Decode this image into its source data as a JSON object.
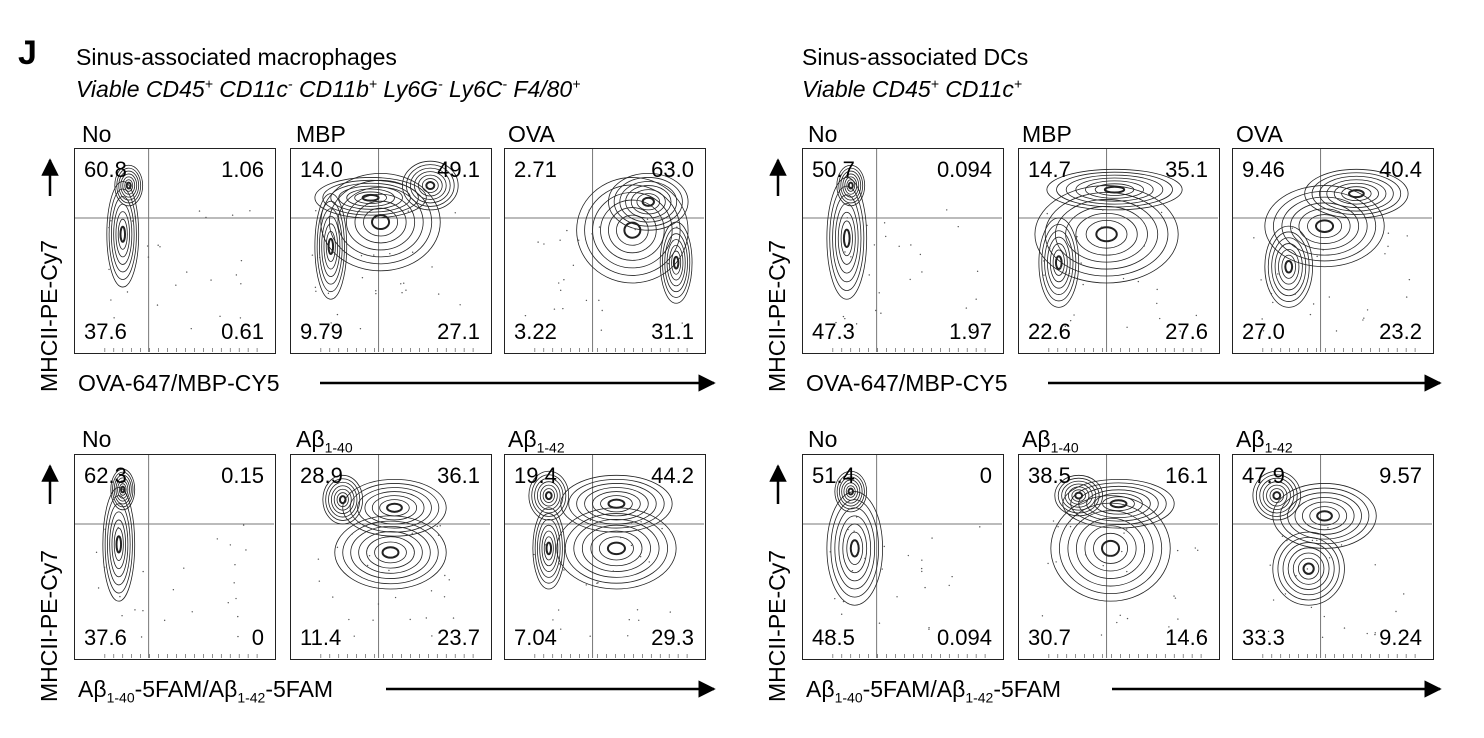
{
  "panel_letter": "J",
  "groups": [
    {
      "title": "Sinus-associated macrophages",
      "subtitle_parts": [
        {
          "t": "Viable CD45",
          "s": "+"
        },
        {
          "t": " CD11c",
          "s": "-"
        },
        {
          "t": " CD11b",
          "s": "+"
        },
        {
          "t": " Ly6G",
          "s": "-"
        },
        {
          "t": " Ly6C",
          "s": "-"
        },
        {
          "t": " F4/80",
          "s": "+"
        }
      ]
    },
    {
      "title": "Sinus-associated DCs",
      "subtitle_parts": [
        {
          "t": "Viable CD45",
          "s": "+"
        },
        {
          "t": " CD11c",
          "s": "+"
        }
      ]
    }
  ],
  "y_axis_label": "MHCII-PE-Cy7",
  "x_axis_labels": {
    "top": "OVA-647/MBP-CY5",
    "bottom": {
      "p1": "Aβ",
      "s1": "1-40",
      "p2": "-5FAM/Aβ",
      "s2": "1-42",
      "p3": "-5FAM"
    }
  },
  "samples": {
    "no": "No",
    "mbp": "MBP",
    "ova": "OVA",
    "ab40": {
      "main": "Aβ",
      "sub": "1-40"
    },
    "ab42": {
      "main": "Aβ",
      "sub": "1-42"
    }
  },
  "chart_data": [
    {
      "type": "table",
      "group": "Sinus-associated macrophages",
      "row": "top",
      "sample": "No",
      "quadrants": {
        "upper_left": "60.8",
        "upper_right": "1.06",
        "lower_left": "37.6",
        "lower_right": "0.61"
      }
    },
    {
      "type": "table",
      "group": "Sinus-associated macrophages",
      "row": "top",
      "sample": "MBP",
      "quadrants": {
        "upper_left": "14.0",
        "upper_right": "49.1",
        "lower_left": "9.79",
        "lower_right": "27.1"
      }
    },
    {
      "type": "table",
      "group": "Sinus-associated macrophages",
      "row": "top",
      "sample": "OVA",
      "quadrants": {
        "upper_left": "2.71",
        "upper_right": "63.0",
        "lower_left": "3.22",
        "lower_right": "31.1"
      }
    },
    {
      "type": "table",
      "group": "Sinus-associated DCs",
      "row": "top",
      "sample": "No",
      "quadrants": {
        "upper_left": "50.7",
        "upper_right": "0.094",
        "lower_left": "47.3",
        "lower_right": "1.97"
      }
    },
    {
      "type": "table",
      "group": "Sinus-associated DCs",
      "row": "top",
      "sample": "MBP",
      "quadrants": {
        "upper_left": "14.7",
        "upper_right": "35.1",
        "lower_left": "22.6",
        "lower_right": "27.6"
      }
    },
    {
      "type": "table",
      "group": "Sinus-associated DCs",
      "row": "top",
      "sample": "OVA",
      "quadrants": {
        "upper_left": "9.46",
        "upper_right": "40.4",
        "lower_left": "27.0",
        "lower_right": "23.2"
      }
    },
    {
      "type": "table",
      "group": "Sinus-associated macrophages",
      "row": "bottom",
      "sample": "No",
      "quadrants": {
        "upper_left": "62.3",
        "upper_right": "0.15",
        "lower_left": "37.6",
        "lower_right": "0"
      }
    },
    {
      "type": "table",
      "group": "Sinus-associated macrophages",
      "row": "bottom",
      "sample": "Aβ1-40",
      "quadrants": {
        "upper_left": "28.9",
        "upper_right": "36.1",
        "lower_left": "11.4",
        "lower_right": "23.7"
      }
    },
    {
      "type": "table",
      "group": "Sinus-associated macrophages",
      "row": "bottom",
      "sample": "Aβ1-42",
      "quadrants": {
        "upper_left": "19.4",
        "upper_right": "44.2",
        "lower_left": "7.04",
        "lower_right": "29.3"
      }
    },
    {
      "type": "table",
      "group": "Sinus-associated DCs",
      "row": "bottom",
      "sample": "No",
      "quadrants": {
        "upper_left": "51.4",
        "upper_right": "0",
        "lower_left": "48.5",
        "lower_right": "0.094"
      }
    },
    {
      "type": "table",
      "group": "Sinus-associated DCs",
      "row": "bottom",
      "sample": "Aβ1-40",
      "quadrants": {
        "upper_left": "38.5",
        "upper_right": "16.1",
        "lower_left": "30.7",
        "lower_right": "14.6"
      }
    },
    {
      "type": "table",
      "group": "Sinus-associated DCs",
      "row": "bottom",
      "sample": "Aβ1-42",
      "quadrants": {
        "upper_left": "47.9",
        "upper_right": "9.57",
        "lower_left": "33.3",
        "lower_right": "9.24"
      }
    }
  ]
}
